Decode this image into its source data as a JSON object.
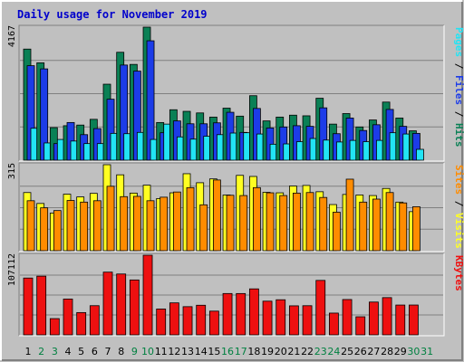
{
  "chart_data": {
    "type": "bar",
    "title": "Daily usage for November 2019",
    "categories": [
      "1",
      "2",
      "3",
      "4",
      "5",
      "6",
      "7",
      "8",
      "9",
      "10",
      "11",
      "12",
      "13",
      "14",
      "15",
      "16",
      "17",
      "18",
      "19",
      "20",
      "21",
      "22",
      "23",
      "24",
      "25",
      "26",
      "27",
      "28",
      "29",
      "30",
      "31"
    ],
    "weekend_days": [
      "2",
      "3",
      "9",
      "10",
      "16",
      "17",
      "23",
      "24",
      "30",
      "31"
    ],
    "colors": {
      "title": "#0000cc",
      "background": "#c0c0c0",
      "grid": "#808080",
      "hits": "#0a8055",
      "files": "#1c3ce8",
      "pages": "#22e4f4",
      "visits": "#ffff22",
      "sites": "#ff8c00",
      "kbytes": "#ee1010",
      "weekday_label": "#000000",
      "weekend_label": "#008040"
    },
    "panels": [
      {
        "id": "hits-files-pages",
        "axis_max_label": "4167",
        "ylim": [
          0,
          4167
        ],
        "label_parts": [
          {
            "text": "Pages",
            "color": "#22e4f4"
          },
          {
            "text": " / ",
            "color": "#000000"
          },
          {
            "text": "Files",
            "color": "#1c3ce8"
          },
          {
            "text": " / ",
            "color": "#000000"
          },
          {
            "text": "Hits",
            "color": "#0a8055"
          }
        ],
        "series": [
          {
            "key": "hits",
            "values": [
              3480,
              3050,
              1020,
              1080,
              1100,
              1280,
              2380,
              3380,
              3000,
              4167,
              1180,
              1580,
              1530,
              1480,
              1350,
              1630,
              1380,
              2020,
              1230,
              1350,
              1410,
              1390,
              1940,
              1130,
              1460,
              1040,
              1260,
              1820,
              1320,
              920,
              null
            ]
          },
          {
            "key": "files",
            "values": [
              2960,
              2860,
              520,
              1180,
              800,
              990,
              1910,
              2980,
              2790,
              3740,
              860,
              1230,
              1140,
              1140,
              1170,
              1500,
              870,
              1620,
              1010,
              1040,
              1080,
              1060,
              1640,
              830,
              1320,
              930,
              1110,
              1590,
              1060,
              840,
              null
            ]
          },
          {
            "key": "pages",
            "values": [
              1000,
              540,
              650,
              600,
              520,
              520,
              840,
              830,
              870,
              650,
              1130,
              730,
              660,
              750,
              800,
              850,
              860,
              820,
              500,
              510,
              580,
              680,
              630,
              570,
              620,
              580,
              620,
              860,
              820,
              340,
              null
            ]
          }
        ]
      },
      {
        "id": "visits-sites",
        "axis_max_label": "315",
        "ylim": [
          0,
          315
        ],
        "label_parts": [
          {
            "text": "Sites",
            "color": "#ff8c00"
          },
          {
            "text": " / ",
            "color": "#000000"
          },
          {
            "text": "Visits",
            "color": "#ffff22"
          }
        ],
        "series": [
          {
            "key": "visits",
            "values": [
              213,
              173,
              138,
              207,
              197,
              210,
              315,
              278,
              211,
              240,
              191,
              212,
              282,
              249,
              263,
              204,
              276,
              272,
              214,
              212,
              237,
              239,
              216,
              169,
              206,
              204,
              202,
              228,
              178,
              143,
              null
            ]
          },
          {
            "key": "sites",
            "values": [
              183,
              157,
              147,
              184,
              178,
              183,
              236,
              198,
              199,
              183,
              196,
              215,
              231,
              168,
              259,
              203,
              202,
              231,
              212,
              202,
              211,
              213,
              195,
              141,
              262,
              178,
              189,
              213,
              175,
              161,
              null
            ]
          }
        ]
      },
      {
        "id": "kbytes",
        "axis_max_label": "107112",
        "ylim": [
          0,
          107112
        ],
        "label_parts": [
          {
            "text": "KBytes",
            "color": "#ee1010"
          }
        ],
        "series": [
          {
            "key": "kbytes",
            "values": [
              76430,
              78940,
              21860,
              48150,
              29970,
              39240,
              84370,
              81840,
              73830,
              107112,
              34740,
              43010,
              37920,
              39810,
              31900,
              55590,
              55560,
              61850,
              45300,
              47220,
              39040,
              39210,
              73240,
              29260,
              47530,
              24310,
              44110,
              50100,
              40080,
              40120,
              null
            ]
          }
        ]
      }
    ]
  }
}
